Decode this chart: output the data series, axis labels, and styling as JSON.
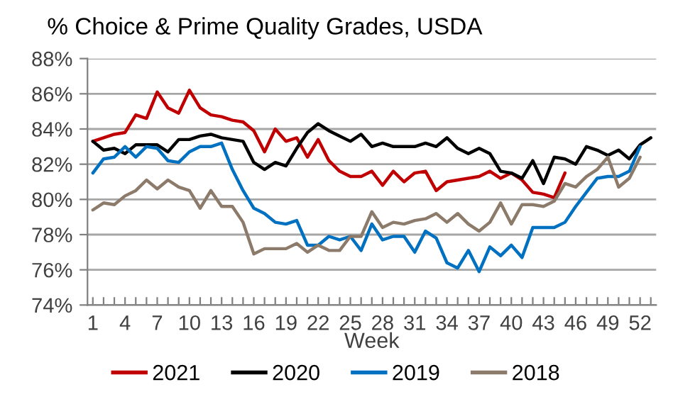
{
  "chart_data": {
    "type": "line",
    "title": "% Choice & Prime Quality Grades, USDA",
    "xlabel": "Week",
    "categories": [
      "1",
      null,
      null,
      "4",
      null,
      null,
      "7",
      null,
      null,
      "10",
      null,
      null,
      "13",
      null,
      null,
      "16",
      null,
      null,
      "19",
      null,
      null,
      "22",
      null,
      null,
      "25",
      null,
      null,
      "28",
      null,
      null,
      "31",
      null,
      null,
      "34",
      null,
      null,
      "37",
      null,
      null,
      "40",
      null,
      null,
      "43",
      null,
      null,
      "46",
      null,
      null,
      "49",
      null,
      null,
      "52",
      null
    ],
    "ylim": [
      74,
      88
    ],
    "yticks": [
      {
        "value": 74,
        "label": "74%"
      },
      {
        "value": 76,
        "label": "76%"
      },
      {
        "value": 78,
        "label": "78%"
      },
      {
        "value": 80,
        "label": "80%"
      },
      {
        "value": 82,
        "label": "82%"
      },
      {
        "value": 84,
        "label": "84%"
      },
      {
        "value": 86,
        "label": "86%"
      },
      {
        "value": 88,
        "label": "88%"
      }
    ],
    "grid": "y",
    "legend": "bottom",
    "marker": "none",
    "line_style": "solid",
    "series": [
      {
        "name": "2021",
        "color": "#c00000",
        "values": [
          83.3,
          83.5,
          83.7,
          83.8,
          84.8,
          84.6,
          86.1,
          85.2,
          84.9,
          86.2,
          85.2,
          84.8,
          84.7,
          84.5,
          84.4,
          83.9,
          82.7,
          84.0,
          83.3,
          83.5,
          82.4,
          83.4,
          82.2,
          81.6,
          81.3,
          81.3,
          81.6,
          80.8,
          81.6,
          81.0,
          81.5,
          81.6,
          80.5,
          81.0,
          81.1,
          81.2,
          81.3,
          81.6,
          81.2,
          81.5,
          81.1,
          80.4,
          80.3,
          80.1,
          81.5,
          null,
          null,
          null,
          null,
          null,
          null,
          null,
          null
        ]
      },
      {
        "name": "2020",
        "color": "#000000",
        "values": [
          83.3,
          82.8,
          82.9,
          82.6,
          83.1,
          83.1,
          83.1,
          82.7,
          83.4,
          83.4,
          83.6,
          83.7,
          83.5,
          83.4,
          83.3,
          82.1,
          81.7,
          82.1,
          81.9,
          82.9,
          83.8,
          84.3,
          83.9,
          83.6,
          83.3,
          83.7,
          83.0,
          83.2,
          83.0,
          83.0,
          83.0,
          83.2,
          83.0,
          83.5,
          82.9,
          82.6,
          82.9,
          82.6,
          81.6,
          81.5,
          81.2,
          82.2,
          80.9,
          82.4,
          82.3,
          82.0,
          83.0,
          82.8,
          82.5,
          82.8,
          82.3,
          83.1,
          83.5
        ]
      },
      {
        "name": "2019",
        "color": "#0070c0",
        "values": [
          81.5,
          82.3,
          82.4,
          83.0,
          82.4,
          83.0,
          82.9,
          82.2,
          82.1,
          82.7,
          83.0,
          83.0,
          83.2,
          81.7,
          80.5,
          79.5,
          79.2,
          78.7,
          78.6,
          78.8,
          77.4,
          77.4,
          77.9,
          77.7,
          77.9,
          77.1,
          78.6,
          77.7,
          77.9,
          77.9,
          77.0,
          78.2,
          77.8,
          76.4,
          76.1,
          77.1,
          75.9,
          77.3,
          76.8,
          77.4,
          76.7,
          78.4,
          78.4,
          78.4,
          78.7,
          79.6,
          80.4,
          81.2,
          81.3,
          81.3,
          81.6,
          83.0,
          null
        ]
      },
      {
        "name": "2018",
        "color": "#8c7b6b",
        "values": [
          79.4,
          79.8,
          79.7,
          80.2,
          80.5,
          81.1,
          80.6,
          81.1,
          80.7,
          80.5,
          79.5,
          80.5,
          79.6,
          79.6,
          78.7,
          76.9,
          77.2,
          77.2,
          77.2,
          77.5,
          77.0,
          77.4,
          77.1,
          77.1,
          77.9,
          77.9,
          79.3,
          78.4,
          78.7,
          78.6,
          78.8,
          78.9,
          79.2,
          78.7,
          79.2,
          78.6,
          78.2,
          78.7,
          79.8,
          78.6,
          79.7,
          79.7,
          79.6,
          79.9,
          80.9,
          80.7,
          81.3,
          81.7,
          82.4,
          80.7,
          81.2,
          82.4,
          null
        ]
      }
    ]
  }
}
